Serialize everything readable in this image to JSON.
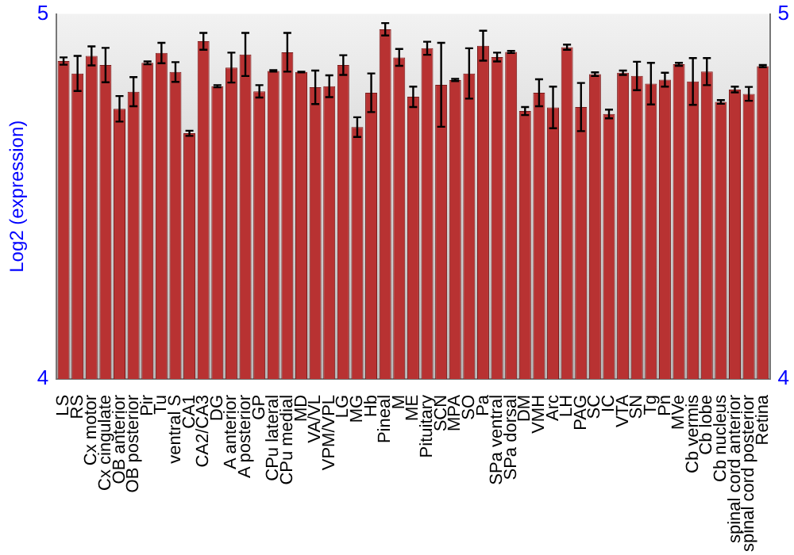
{
  "chart_data": {
    "type": "bar",
    "ylabel": "Log2 (expression)",
    "categories": [
      "LS",
      "RS",
      "Cx motor",
      "Cx cingulate",
      "OB anterior",
      "OB posterior",
      "Pir",
      "Tu",
      "ventral S",
      "CA1",
      "CA2/CA3",
      "DG",
      "A anterior",
      "A posterior",
      "GP",
      "CPu lateral",
      "CPu medial",
      "MD",
      "VA/VL",
      "VPM/VPL",
      "LG",
      "MG",
      "Hb",
      "Pineal",
      "M",
      "ME",
      "Pituitary",
      "SCN",
      "MPA",
      "SO",
      "Pa",
      "SPa ventral",
      "SPa dorsal",
      "DM",
      "VMH",
      "Arc",
      "LH",
      "PAG",
      "SC",
      "IC",
      "VTA",
      "SN",
      "Tg",
      "Pn",
      "MVe",
      "Cb vermis",
      "Cb lobe",
      "Cb nucleus",
      "spinal cord anterior",
      "spinal cord posterior",
      "Retina"
    ],
    "values": [
      4.871,
      4.837,
      4.885,
      4.86,
      4.74,
      4.787,
      4.866,
      4.893,
      4.841,
      4.673,
      4.925,
      4.802,
      4.853,
      4.889,
      4.788,
      4.844,
      4.895,
      4.841,
      4.799,
      4.802,
      4.86,
      4.69,
      4.784,
      4.958,
      4.881,
      4.773,
      4.906,
      4.806,
      4.819,
      4.837,
      4.913,
      4.882,
      4.896,
      4.734,
      4.784,
      4.744,
      4.909,
      4.745,
      4.835,
      4.726,
      4.839,
      4.83,
      4.809,
      4.82,
      4.862,
      4.815,
      4.842,
      4.759,
      4.793,
      4.781,
      4.857
    ],
    "errors": [
      0.01,
      0.048,
      0.026,
      0.047,
      0.035,
      0.04,
      0.004,
      0.028,
      0.027,
      0.007,
      0.023,
      0.003,
      0.041,
      0.059,
      0.017,
      0.002,
      0.053,
      0.001,
      0.046,
      0.03,
      0.027,
      0.027,
      0.053,
      0.017,
      0.023,
      0.028,
      0.018,
      0.115,
      0.003,
      0.069,
      0.041,
      0.012,
      0.003,
      0.011,
      0.037,
      0.057,
      0.007,
      0.066,
      0.005,
      0.012,
      0.006,
      0.039,
      0.057,
      0.019,
      0.004,
      0.064,
      0.037,
      0.005,
      0.008,
      0.019,
      0.003
    ],
    "color": "#b83232",
    "ylim": [
      4,
      5
    ],
    "yticks": [
      4,
      5
    ],
    "y2lim": [
      4,
      5
    ],
    "y2ticks": [
      4,
      5
    ],
    "grid": false,
    "legend": false
  }
}
